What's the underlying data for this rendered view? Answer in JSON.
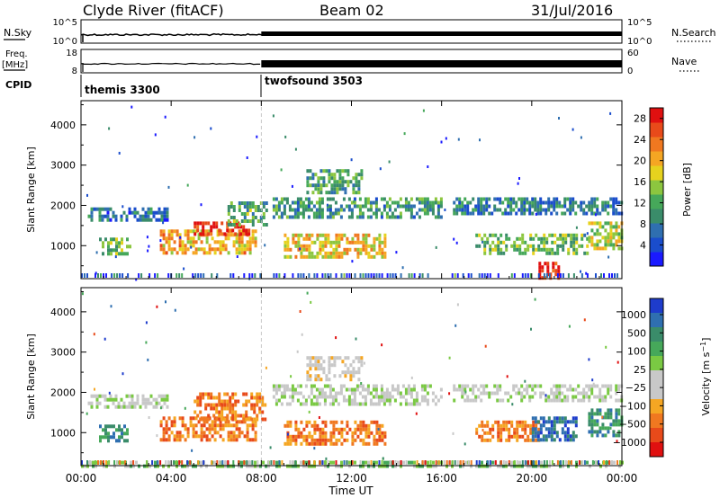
{
  "header": {
    "station": "Clyde River (fitACF)",
    "beam": "Beam 02",
    "date": "31/Jul/2016"
  },
  "top_panels": {
    "nsky_label": "N.Sky",
    "nsearch_label": "N.Search",
    "nsky_ticks": [
      "10^5",
      "10^0"
    ],
    "nsearch_ticks": [
      "10^5",
      "10^0"
    ],
    "freq_label_1": "Freq.",
    "freq_label_2": "[MHz]",
    "freq_ticks": [
      "18",
      "8"
    ],
    "nave_label": "Nave",
    "nave_ticks": [
      "60",
      "0"
    ],
    "cpid_label": "CPID",
    "cpid_programs": [
      {
        "name": "themis 3300",
        "start_hour": 0
      },
      {
        "name": "twofsound 3503",
        "start_hour": 8
      }
    ]
  },
  "chart_data": [
    {
      "type": "heatmap",
      "name": "power",
      "ylabel": "Slant Range [km]",
      "yticks": [
        1000,
        2000,
        3000,
        4000
      ],
      "ylim": [
        180,
        4600
      ],
      "x": [
        "00:00",
        "04:00",
        "08:00",
        "12:00",
        "16:00",
        "20:00",
        "00:00"
      ],
      "xlim_hours": [
        0,
        24
      ],
      "colorbar": {
        "label": "Power [dB]",
        "ticks": [
          4,
          8,
          12,
          16,
          20,
          24,
          28
        ],
        "range": [
          0,
          30
        ],
        "colors": [
          "#1a1aff",
          "#1a4dcc",
          "#2f6fb0",
          "#3a8c6a",
          "#46a85a",
          "#8cc63f",
          "#e6d21e",
          "#f5a623",
          "#f07820",
          "#e84a1a",
          "#e01010"
        ]
      },
      "regions": [
        {
          "t0": 0.3,
          "t1": 3.8,
          "r0": 1650,
          "r1": 1950,
          "v": 7
        },
        {
          "t0": 0.8,
          "t1": 2.2,
          "r0": 800,
          "r1": 1200,
          "v": 14
        },
        {
          "t0": 3.5,
          "t1": 7.8,
          "r0": 800,
          "r1": 1400,
          "v": 20
        },
        {
          "t0": 5.0,
          "t1": 7.5,
          "r0": 1300,
          "r1": 1600,
          "v": 27
        },
        {
          "t0": 6.5,
          "t1": 8.2,
          "r0": 1500,
          "r1": 2100,
          "v": 12
        },
        {
          "t0": 8.5,
          "t1": 16.0,
          "r0": 1700,
          "r1": 2200,
          "v": 10
        },
        {
          "t0": 9.0,
          "t1": 13.5,
          "r0": 700,
          "r1": 1300,
          "v": 19
        },
        {
          "t0": 10.0,
          "t1": 12.5,
          "r0": 2300,
          "r1": 2900,
          "v": 11
        },
        {
          "t0": 16.5,
          "t1": 24.0,
          "r0": 1800,
          "r1": 2200,
          "v": 8
        },
        {
          "t0": 17.5,
          "t1": 22.5,
          "r0": 800,
          "r1": 1300,
          "v": 13
        },
        {
          "t0": 20.3,
          "t1": 21.2,
          "r0": 200,
          "r1": 600,
          "v": 28
        },
        {
          "t0": 22.5,
          "t1": 24.0,
          "r0": 900,
          "r1": 1600,
          "v": 16
        }
      ]
    },
    {
      "type": "heatmap",
      "name": "velocity",
      "ylabel": "Slant Range [km]",
      "yticks": [
        1000,
        2000,
        3000,
        4000
      ],
      "ylim": [
        180,
        4600
      ],
      "x": [
        "00:00",
        "04:00",
        "08:00",
        "12:00",
        "16:00",
        "20:00",
        "00:00"
      ],
      "xlim_hours": [
        0,
        24
      ],
      "xlabel": "Time UT",
      "colorbar": {
        "label": "Velocity [m s^-1]",
        "ticks": [
          "1000",
          "500",
          "100",
          "25",
          "−25",
          "−100",
          "−500",
          "−1000"
        ],
        "colors": [
          "#1e3ccc",
          "#2f6fb0",
          "#3a8c6a",
          "#46a85a",
          "#7ac943",
          "#c8c8c8",
          "#c8c8c8",
          "#f5a623",
          "#f07820",
          "#e84a1a",
          "#e01010"
        ]
      },
      "regions": [
        {
          "t0": 0.3,
          "t1": 3.8,
          "r0": 1650,
          "r1": 1950,
          "v": 5
        },
        {
          "t0": 0.8,
          "t1": 2.2,
          "r0": 800,
          "r1": 1200,
          "v": 2
        },
        {
          "t0": 3.5,
          "t1": 7.8,
          "r0": 800,
          "r1": 1400,
          "v": 8
        },
        {
          "t0": 5.0,
          "t1": 8.2,
          "r0": 1300,
          "r1": 2000,
          "v": 8
        },
        {
          "t0": 8.5,
          "t1": 16.0,
          "r0": 1700,
          "r1": 2200,
          "v": 5
        },
        {
          "t0": 9.0,
          "t1": 13.5,
          "r0": 700,
          "r1": 1300,
          "v": 8
        },
        {
          "t0": 10.0,
          "t1": 12.5,
          "r0": 2300,
          "r1": 2900,
          "v": 6
        },
        {
          "t0": 16.5,
          "t1": 24.0,
          "r0": 1800,
          "r1": 2200,
          "v": 5
        },
        {
          "t0": 17.5,
          "t1": 20.3,
          "r0": 800,
          "r1": 1300,
          "v": 8
        },
        {
          "t0": 20.0,
          "t1": 22.0,
          "r0": 800,
          "r1": 1400,
          "v": 1
        },
        {
          "t0": 22.5,
          "t1": 24.0,
          "r0": 900,
          "r1": 1600,
          "v": 2
        },
        {
          "t0": 0.0,
          "t1": 24.0,
          "r0": 180,
          "r1": 300,
          "v": 4
        }
      ]
    }
  ],
  "xaxis": {
    "ticks": [
      "00:00",
      "04:00",
      "08:00",
      "12:00",
      "16:00",
      "20:00",
      "00:00"
    ],
    "label": "Time UT"
  }
}
